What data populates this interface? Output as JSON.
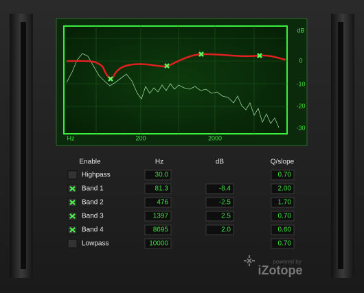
{
  "graph": {
    "y_unit": "dB",
    "y_labels": [
      "0",
      "-10",
      "-20",
      "-30"
    ],
    "x_unit": "Hz",
    "x_labels": [
      "200",
      "2000"
    ]
  },
  "table": {
    "headers": [
      "Enable",
      "Hz",
      "dB",
      "Q/slope"
    ],
    "rows": [
      {
        "name": "Highpass",
        "enabled": false,
        "hz": "30.0",
        "q": "0.70"
      },
      {
        "name": "Band 1",
        "enabled": true,
        "hz": "81.3",
        "db": "-8.4",
        "q": "2.00"
      },
      {
        "name": "Band 2",
        "enabled": true,
        "hz": "476",
        "db": "-2.5",
        "q": "1.70"
      },
      {
        "name": "Band 3",
        "enabled": true,
        "hz": "1397",
        "db": "2.5",
        "q": "0.70"
      },
      {
        "name": "Band 4",
        "enabled": true,
        "hz": "8695",
        "db": "2.0",
        "q": "0.60"
      },
      {
        "name": "Lowpass",
        "enabled": false,
        "hz": "10000",
        "q": "0.70"
      }
    ]
  },
  "brand": {
    "tagline": "powered by",
    "name": "iZotope"
  }
}
